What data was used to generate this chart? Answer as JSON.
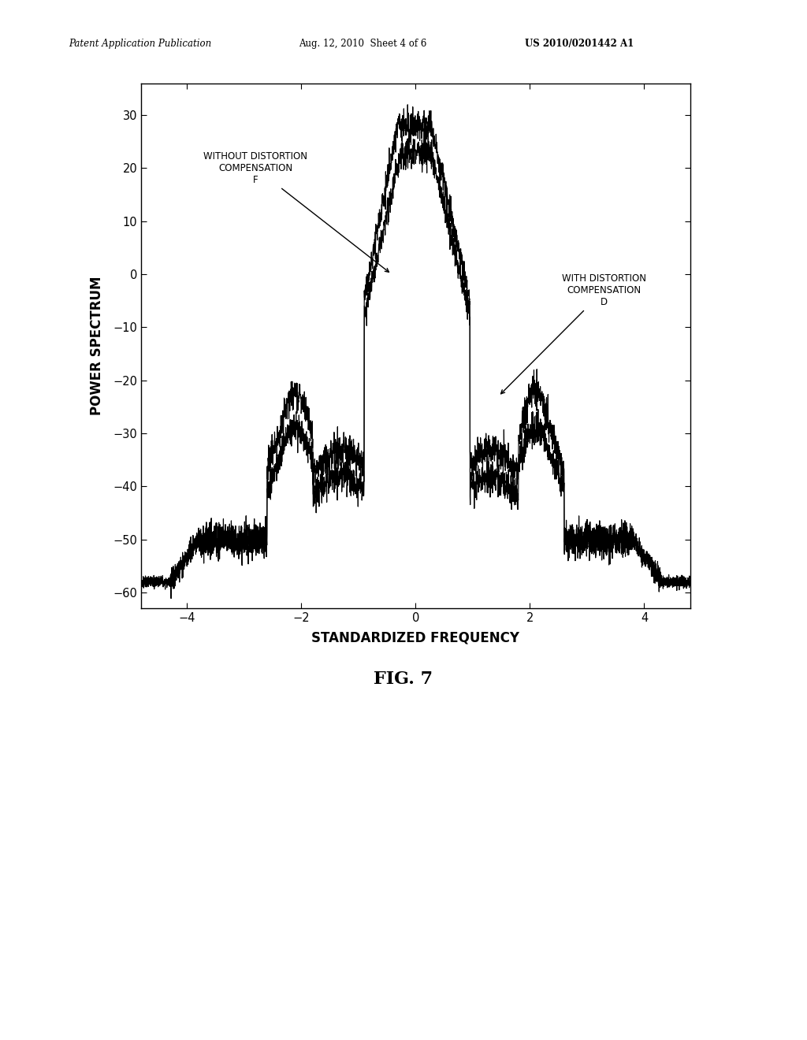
{
  "title_header_left": "Patent Application Publication",
  "title_header_mid": "Aug. 12, 2010  Sheet 4 of 6",
  "title_header_right": "US 2010/0201442 A1",
  "xlabel": "STANDARDIZED FREQUENCY",
  "ylabel": "POWER SPECTRUM",
  "fig_label": "FIG. 7",
  "xlim": [
    -4.8,
    4.8
  ],
  "ylim": [
    -63,
    36
  ],
  "xticks": [
    -4,
    -2,
    0,
    2,
    4
  ],
  "yticks": [
    -60,
    -50,
    -40,
    -30,
    -20,
    -10,
    0,
    10,
    20,
    30
  ],
  "background_color": "#ffffff",
  "line_color": "#000000"
}
